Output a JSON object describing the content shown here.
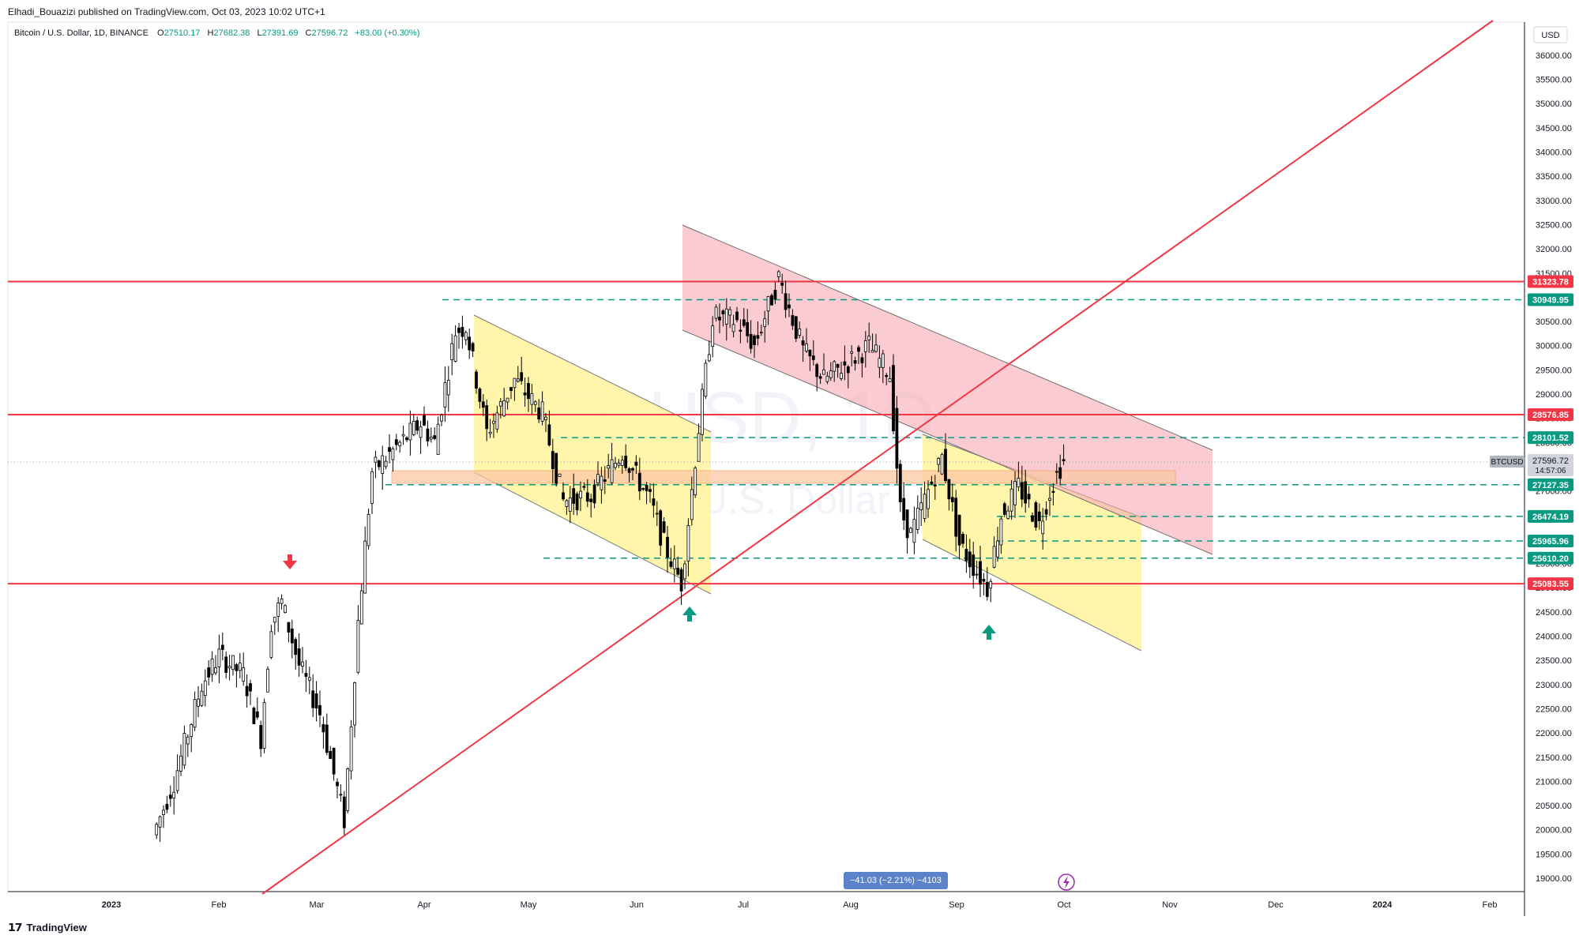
{
  "header": {
    "publisher": "Elhadi_Bouazizi published on TradingView.com, Oct 03, 2023 10:02 UTC+1"
  },
  "legend": {
    "symbol": "Bitcoin / U.S. Dollar, 1D, BINANCE",
    "open_label": "O",
    "open": "27510.17",
    "high_label": "H",
    "high": "27682.38",
    "low_label": "L",
    "low": "27391.69",
    "close_label": "C",
    "close": "27596.72",
    "change": "+83.00 (+0.30%)"
  },
  "watermark": {
    "symbol": "BTCUSD, 1D",
    "name": "Bitcoin / U.S. Dollar"
  },
  "currency": "USD",
  "measure_label": "−41.03 (−2.21%) −4103",
  "footer": {
    "brand": "TradingView"
  },
  "chart_data": {
    "type": "candlestick",
    "y_axis_ticks": [
      19000,
      19500,
      20000,
      20500,
      21000,
      21500,
      22000,
      22500,
      23000,
      23500,
      24000,
      24500,
      25000,
      25500,
      26000,
      26500,
      27000,
      27500,
      28000,
      28500,
      29000,
      29500,
      30000,
      30500,
      31000,
      31500,
      32000,
      32500,
      33000,
      33500,
      34000,
      34500,
      35000,
      35500,
      36000
    ],
    "ylim": [
      18650,
      36350
    ],
    "x_axis_labels": [
      "2023",
      "Feb",
      "Mar",
      "Apr",
      "May",
      "Jun",
      "Jul",
      "Aug",
      "Sep",
      "Oct",
      "Nov",
      "Dec",
      "2024",
      "Feb"
    ],
    "horizontal_levels": [
      {
        "value": 31323.78,
        "label": "31323.78",
        "style": "solid",
        "color": "#f23645"
      },
      {
        "value": 28576.85,
        "label": "28576.85",
        "style": "solid",
        "color": "#f23645"
      },
      {
        "value": 25083.55,
        "label": "25083.55",
        "style": "solid",
        "color": "#f23645"
      },
      {
        "value": 30949.95,
        "label": "30949.95",
        "style": "dashed",
        "color": "#089981"
      },
      {
        "value": 28101.52,
        "label": "28101.52",
        "style": "dashed",
        "color": "#089981"
      },
      {
        "value": 27127.35,
        "label": "27127.35",
        "style": "dashed",
        "color": "#089981"
      },
      {
        "value": 26474.19,
        "label": "26474.19",
        "style": "dashed",
        "color": "#089981"
      },
      {
        "value": 25965.96,
        "label": "25965.96",
        "style": "dashed",
        "color": "#089981"
      },
      {
        "value": 25610.2,
        "label": "25610.20",
        "style": "dashed",
        "color": "#089981"
      }
    ],
    "last_price": {
      "symbol": "BTCUSD",
      "value": 27596.72,
      "label": "27596.72",
      "countdown": "14:57:06"
    },
    "close_path": [
      {
        "date": "2023-01-14",
        "close": 19900
      },
      {
        "date": "2023-01-20",
        "close": 21000
      },
      {
        "date": "2023-01-28",
        "close": 23000
      },
      {
        "date": "2023-02-02",
        "close": 23600
      },
      {
        "date": "2023-02-09",
        "close": 23200
      },
      {
        "date": "2023-02-14",
        "close": 21900
      },
      {
        "date": "2023-02-17",
        "close": 24300
      },
      {
        "date": "2023-02-20",
        "close": 24700
      },
      {
        "date": "2023-02-25",
        "close": 23400
      },
      {
        "date": "2023-03-03",
        "close": 22400
      },
      {
        "date": "2023-03-10",
        "close": 20200
      },
      {
        "date": "2023-03-14",
        "close": 24300
      },
      {
        "date": "2023-03-18",
        "close": 27400
      },
      {
        "date": "2023-03-25",
        "close": 27900
      },
      {
        "date": "2023-04-01",
        "close": 28400
      },
      {
        "date": "2023-04-05",
        "close": 28000
      },
      {
        "date": "2023-04-11",
        "close": 30300
      },
      {
        "date": "2023-04-14",
        "close": 30400
      },
      {
        "date": "2023-04-20",
        "close": 28200
      },
      {
        "date": "2023-04-28",
        "close": 29300
      },
      {
        "date": "2023-05-06",
        "close": 28600
      },
      {
        "date": "2023-05-12",
        "close": 26800
      },
      {
        "date": "2023-05-20",
        "close": 26900
      },
      {
        "date": "2023-05-29",
        "close": 27800
      },
      {
        "date": "2023-06-06",
        "close": 26800
      },
      {
        "date": "2023-06-10",
        "close": 25900
      },
      {
        "date": "2023-06-15",
        "close": 25100
      },
      {
        "date": "2023-06-20",
        "close": 28300
      },
      {
        "date": "2023-06-24",
        "close": 30600
      },
      {
        "date": "2023-07-01",
        "close": 30500
      },
      {
        "date": "2023-07-06",
        "close": 30000
      },
      {
        "date": "2023-07-13",
        "close": 31400
      },
      {
        "date": "2023-07-20",
        "close": 29900
      },
      {
        "date": "2023-07-26",
        "close": 29300
      },
      {
        "date": "2023-08-01",
        "close": 29600
      },
      {
        "date": "2023-08-08",
        "close": 30000
      },
      {
        "date": "2023-08-14",
        "close": 29400
      },
      {
        "date": "2023-08-17",
        "close": 26600
      },
      {
        "date": "2023-08-20",
        "close": 26100
      },
      {
        "date": "2023-08-29",
        "close": 27700
      },
      {
        "date": "2023-09-03",
        "close": 25900
      },
      {
        "date": "2023-09-11",
        "close": 25000
      },
      {
        "date": "2023-09-15",
        "close": 26500
      },
      {
        "date": "2023-09-20",
        "close": 27100
      },
      {
        "date": "2023-09-26",
        "close": 26300
      },
      {
        "date": "2023-09-29",
        "close": 27000
      },
      {
        "date": "2023-10-02",
        "close": 27500
      },
      {
        "date": "2023-10-03",
        "close": 27597
      }
    ],
    "grid": false
  }
}
